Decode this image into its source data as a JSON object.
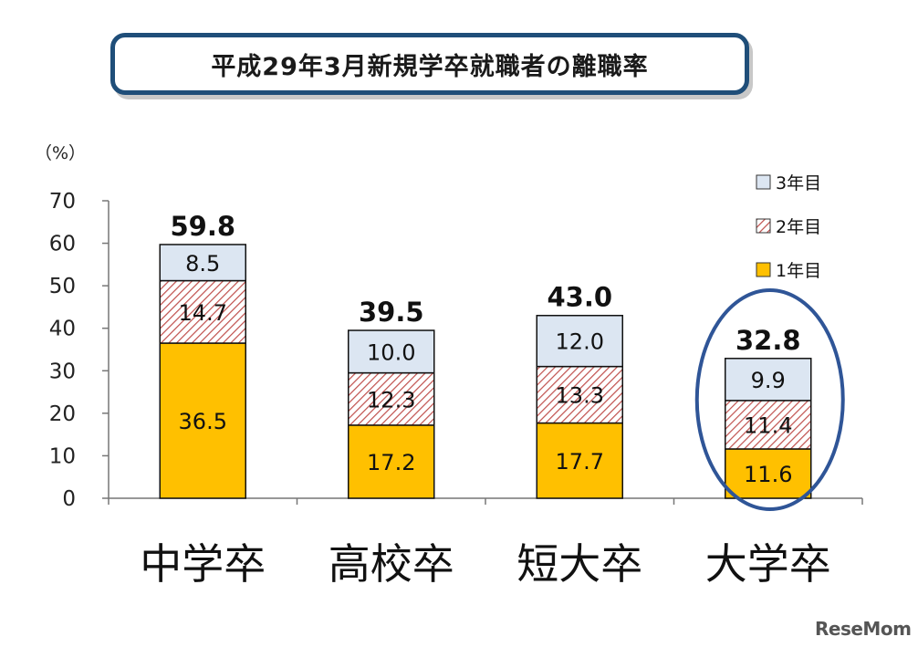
{
  "title": "平成29年3月新規学卒就職者の離職率",
  "brand": "ReseMom",
  "chart_data": {
    "type": "bar",
    "stacked": true,
    "ylabel": "（%）",
    "ylim": [
      0,
      70
    ],
    "yticks": [
      0,
      10,
      20,
      30,
      40,
      50,
      60,
      70
    ],
    "categories": [
      "中学卒",
      "高校卒",
      "短大卒",
      "大学卒"
    ],
    "series": [
      {
        "name": "1年目",
        "values": [
          36.5,
          17.2,
          17.7,
          11.6
        ],
        "color": "#ffc000"
      },
      {
        "name": "2年目",
        "values": [
          14.7,
          12.3,
          13.3,
          11.4
        ],
        "color": "#c0504d",
        "pattern": "hatch"
      },
      {
        "name": "3年目",
        "values": [
          8.5,
          10.0,
          12.0,
          9.9
        ],
        "color": "#dce6f2"
      }
    ],
    "totals": [
      "59.8",
      "39.5",
      "43.0",
      "32.8"
    ],
    "legend_position": "top-right",
    "highlight": {
      "category": "大学卒",
      "shape": "ellipse",
      "color": "#2f5597"
    }
  }
}
